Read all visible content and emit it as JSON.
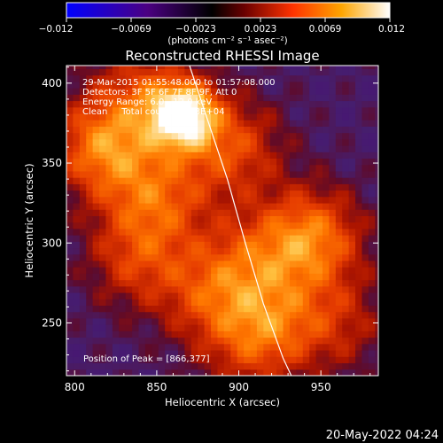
{
  "chart_data": {
    "type": "heatmap",
    "title": "Reconstructed RHESSI Image",
    "xlabel": "Heliocentric X (arcsec)",
    "ylabel": "Heliocentric Y (arcsec)",
    "xlim": [
      795,
      985
    ],
    "ylim": [
      217,
      411
    ],
    "x_ticks": [
      800,
      850,
      900,
      950
    ],
    "y_ticks": [
      250,
      300,
      350,
      400
    ],
    "colorbar": {
      "label": "(photons cm⁻² s⁻¹ asec⁻²)",
      "range": [
        -0.012,
        0.012
      ],
      "ticks": [
        "−0.012",
        "−0.0069",
        "−0.0023",
        "0.0023",
        "0.0069",
        "0.012"
      ],
      "colormap": [
        "#0000ff",
        "#4b0082",
        "#000000",
        "#800000",
        "#ff4500",
        "#ffa500",
        "#ffff80",
        "#ffffff"
      ]
    },
    "annotations": [
      "29-Mar-2015 01:55:48.000 to 01:57:08.000",
      "Detectors: 3F 5F 6F 7F 8F 9F, Att 0",
      "Energy Range: 6.0 - 12.0 keV",
      "Clean     Total counts: 3.78E+04"
    ],
    "peak_label": "Position of Peak = [866,377]",
    "peak": [
      866,
      377
    ],
    "sources": [
      {
        "x": 866,
        "y": 380,
        "intensity": 0.012
      },
      {
        "x": 818,
        "y": 360,
        "intensity": 0.0075
      },
      {
        "x": 944,
        "y": 303,
        "intensity": 0.0075
      },
      {
        "x": 895,
        "y": 360,
        "intensity": 0.0055
      },
      {
        "x": 850,
        "y": 328,
        "intensity": 0.0055
      },
      {
        "x": 838,
        "y": 290,
        "intensity": 0.0045
      },
      {
        "x": 882,
        "y": 268,
        "intensity": 0.0045
      },
      {
        "x": 908,
        "y": 290,
        "intensity": 0.004
      },
      {
        "x": 920,
        "y": 250,
        "intensity": 0.0045
      },
      {
        "x": 960,
        "y": 250,
        "intensity": 0.0035
      },
      {
        "x": 905,
        "y": 235,
        "intensity": 0.003
      },
      {
        "x": 842,
        "y": 395,
        "intensity": 0.0045
      }
    ],
    "limb_curve": [
      [
        870,
        411
      ],
      [
        880,
        380
      ],
      [
        893,
        340
      ],
      [
        904,
        300
      ],
      [
        915,
        262
      ],
      [
        927,
        228
      ],
      [
        932,
        217
      ]
    ],
    "grid": false
  },
  "footer_date": "20-May-2022 04:24"
}
